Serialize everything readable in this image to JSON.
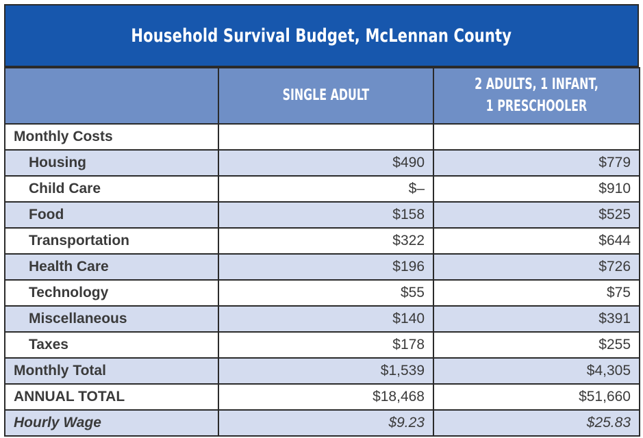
{
  "title": "Household Survival Budget, McLennan County",
  "columns": {
    "blank": "",
    "single": "SINGLE ADULT",
    "family_line1": "2 ADULTS, 1 INFANT,",
    "family_line2": "1 PRESCHOOLER"
  },
  "section_header": {
    "label": "Monthly Costs",
    "single": "",
    "family": ""
  },
  "cost_rows": [
    {
      "label": "Housing",
      "single": "$490",
      "family": "$779"
    },
    {
      "label": "Child Care",
      "single": "$–",
      "family": "$910"
    },
    {
      "label": "Food",
      "single": "$158",
      "family": "$525"
    },
    {
      "label": "Transportation",
      "single": "$322",
      "family": "$644"
    },
    {
      "label": "Health Care",
      "single": "$196",
      "family": "$726"
    },
    {
      "label": "Technology",
      "single": "$55",
      "family": "$75"
    },
    {
      "label": "Miscellaneous",
      "single": "$140",
      "family": "$391"
    },
    {
      "label": "Taxes",
      "single": "$178",
      "family": "$255"
    }
  ],
  "monthly_total": {
    "label": "Monthly Total",
    "single": "$1,539",
    "family": "$4,305"
  },
  "annual_total": {
    "label": "ANNUAL TOTAL",
    "single": "$18,468",
    "family": "$51,660"
  },
  "hourly_wage": {
    "label": "Hourly Wage",
    "single": "$9.23",
    "family": "$25.83"
  },
  "colors": {
    "title_background": "#1757ad",
    "header_background": "#6f8fc6",
    "alt_row": "#d4dcef",
    "border": "#2a2a2a"
  }
}
